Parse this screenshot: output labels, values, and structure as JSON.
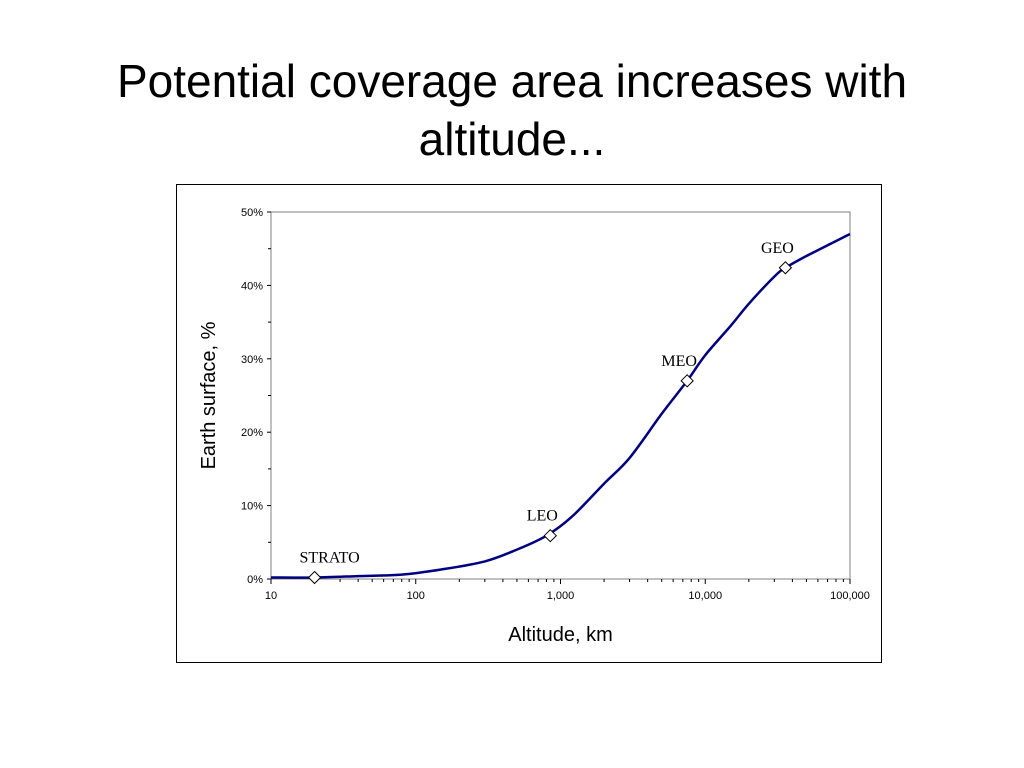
{
  "slide": {
    "title_line1": "Potential coverage area increases with",
    "title_line2": "altitude..."
  },
  "chart_data": {
    "type": "line",
    "xscale": "log",
    "xlim": [
      10,
      100000
    ],
    "ylim": [
      0,
      50
    ],
    "xticks": [
      10,
      100,
      1000,
      10000,
      100000
    ],
    "xtick_labels": [
      "10",
      "100",
      "1,000",
      "10,000",
      "100,000"
    ],
    "yticks": [
      0,
      10,
      20,
      30,
      40,
      50
    ],
    "ytick_labels": [
      "0%",
      "10%",
      "20%",
      "30%",
      "40%",
      "50%"
    ],
    "xlabel": "Altitude, km",
    "ylabel": "Earth surface, %",
    "grid": false,
    "line_color": "#000080",
    "series": [
      {
        "x": [
          10,
          20,
          40,
          80,
          150,
          300,
          500,
          800,
          1200,
          2000,
          3000,
          5000,
          7500,
          10000,
          15000,
          20000,
          30000,
          35786,
          50000,
          100000
        ],
        "y": [
          0.2,
          0.2,
          0.4,
          0.6,
          1.3,
          2.4,
          4.0,
          5.9,
          8.5,
          13.0,
          16.5,
          22.5,
          27.0,
          30.5,
          34.5,
          37.5,
          41.2,
          42.4,
          44.0,
          47.0
        ]
      }
    ],
    "markers": [
      {
        "label": "STRATO",
        "x": 20,
        "y": 0.2
      },
      {
        "label": "LEO",
        "x": 850,
        "y": 5.9
      },
      {
        "label": "MEO",
        "x": 7500,
        "y": 27.0
      },
      {
        "label": "GEO",
        "x": 35786,
        "y": 42.4
      }
    ]
  }
}
